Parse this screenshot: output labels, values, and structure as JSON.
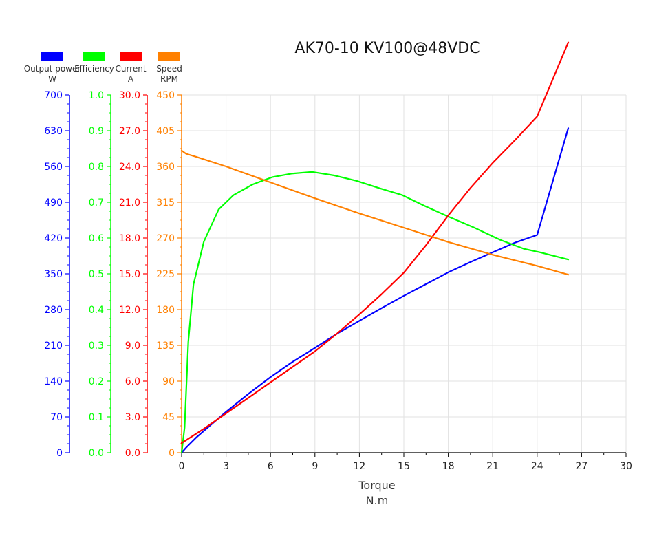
{
  "chart_data": {
    "type": "line",
    "title": "AK70-10 KV100@48VDC",
    "xlabel": "Torque",
    "xunit": "N.m",
    "xlim": [
      0,
      30
    ],
    "xticks": [
      0,
      3,
      6,
      9,
      12,
      15,
      18,
      21,
      24,
      27,
      30
    ],
    "grid": true,
    "legend_position": "top-left",
    "series": [
      {
        "name": "Output power",
        "unit": "W",
        "color": "#0000ff",
        "ylim": [
          0,
          700
        ],
        "ticks": [
          "0",
          "70",
          "140",
          "210",
          "280",
          "350",
          "420",
          "490",
          "560",
          "630",
          "700"
        ],
        "x": [
          0,
          0.3,
          1,
          2,
          3,
          4.5,
          6,
          7.5,
          9,
          10.5,
          12,
          13.5,
          15,
          16.5,
          18,
          19.5,
          21,
          22.5,
          24,
          26.1
        ],
        "values": [
          0,
          10,
          30,
          55,
          80,
          115,
          148,
          178,
          205,
          233,
          258,
          283,
          307,
          330,
          353,
          373,
          392,
          411,
          426,
          635
        ]
      },
      {
        "name": "Efficiency",
        "color": "#00ff00",
        "ylim": [
          0,
          1.0
        ],
        "ticks": [
          "0.0",
          "0.1",
          "0.2",
          "0.3",
          "0.4",
          "0.5",
          "0.6",
          "0.7",
          "0.8",
          "0.9",
          "1.0"
        ],
        "x": [
          0,
          0.2,
          0.45,
          0.8,
          1.5,
          2.5,
          3.5,
          4.8,
          6.1,
          7.4,
          8.8,
          10.3,
          11.8,
          13.3,
          14.9,
          16.4,
          18,
          19.7,
          21.5,
          23.1,
          24.2,
          26.1
        ],
        "values": [
          0,
          0.07,
          0.31,
          0.47,
          0.59,
          0.68,
          0.72,
          0.75,
          0.77,
          0.78,
          0.785,
          0.775,
          0.76,
          0.74,
          0.72,
          0.69,
          0.66,
          0.63,
          0.595,
          0.57,
          0.56,
          0.54
        ]
      },
      {
        "name": "Current",
        "unit": "A",
        "color": "#ff0000",
        "ylim": [
          0,
          30
        ],
        "ticks": [
          "0.0",
          "3.0",
          "6.0",
          "9.0",
          "12.0",
          "15.0",
          "18.0",
          "21.0",
          "24.0",
          "27.0",
          "30.0"
        ],
        "x": [
          0,
          1.5,
          3,
          4.5,
          6,
          7.5,
          9,
          10.5,
          12,
          13.5,
          15,
          16.5,
          18,
          19.5,
          21,
          22.5,
          24,
          26.1
        ],
        "values": [
          0.8,
          2.0,
          3.3,
          4.6,
          5.9,
          7.2,
          8.5,
          10.0,
          11.6,
          13.3,
          15.1,
          17.4,
          19.9,
          22.2,
          24.3,
          26.2,
          28.2,
          34.4
        ]
      },
      {
        "name": "Speed",
        "unit": "RPM",
        "color": "#ff8000",
        "ylim": [
          0,
          450
        ],
        "ticks": [
          "0",
          "45",
          "90",
          "135",
          "180",
          "225",
          "270",
          "315",
          "360",
          "405",
          "450"
        ],
        "x": [
          0,
          0.3,
          1,
          3,
          6,
          9,
          12,
          15,
          18,
          21,
          24,
          26.1
        ],
        "values": [
          380,
          376,
          372,
          360,
          340,
          320,
          301,
          283,
          265,
          249,
          235,
          224
        ]
      }
    ]
  }
}
